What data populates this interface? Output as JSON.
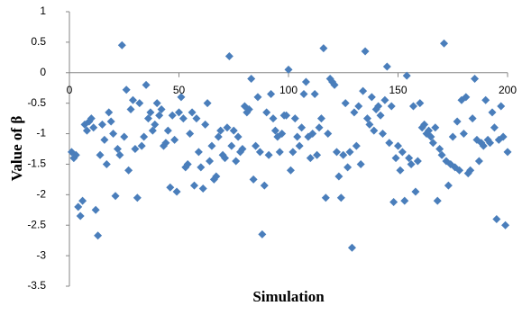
{
  "chart_data": {
    "type": "scatter",
    "x_label": "Simulation",
    "y_label": "Value of β",
    "xlim": [
      0,
      200
    ],
    "ylim": [
      -3.5,
      1
    ],
    "xticks": [
      0,
      50,
      100,
      150,
      200
    ],
    "yticks": [
      1,
      0.5,
      0,
      -0.5,
      -1,
      -1.5,
      -2,
      -2.5,
      -3,
      -3.5
    ],
    "grid": false,
    "series": [
      {
        "color": "#4a7ebb",
        "x": [
          1,
          2,
          3,
          4,
          5,
          6,
          7,
          8,
          9,
          10,
          11,
          12,
          13,
          14,
          15,
          16,
          17,
          18,
          19,
          20,
          21,
          22,
          23,
          24,
          25,
          26,
          27,
          28,
          29,
          30,
          31,
          32,
          33,
          34,
          35,
          36,
          37,
          38,
          39,
          40,
          41,
          42,
          43,
          44,
          45,
          46,
          47,
          48,
          49,
          50,
          51,
          52,
          53,
          54,
          55,
          56,
          57,
          58,
          59,
          60,
          61,
          62,
          63,
          64,
          65,
          66,
          67,
          68,
          69,
          70,
          71,
          72,
          73,
          74,
          75,
          76,
          77,
          78,
          79,
          80,
          81,
          82,
          83,
          84,
          85,
          86,
          87,
          88,
          89,
          90,
          91,
          92,
          93,
          94,
          95,
          96,
          97,
          98,
          99,
          100,
          101,
          102,
          103,
          104,
          105,
          106,
          107,
          108,
          109,
          110,
          111,
          112,
          113,
          114,
          115,
          116,
          117,
          118,
          119,
          120,
          121,
          122,
          123,
          124,
          125,
          126,
          127,
          128,
          129,
          130,
          131,
          132,
          133,
          134,
          135,
          136,
          137,
          138,
          139,
          140,
          141,
          142,
          143,
          144,
          145,
          146,
          147,
          148,
          149,
          150,
          151,
          152,
          153,
          154,
          155,
          156,
          157,
          158,
          159,
          160,
          161,
          162,
          163,
          164,
          165,
          166,
          167,
          168,
          169,
          170,
          171,
          172,
          173,
          174,
          175,
          176,
          177,
          178,
          179,
          180,
          181,
          182,
          183,
          184,
          185,
          186,
          187,
          188,
          189,
          190,
          191,
          192,
          193,
          194,
          195,
          196,
          197,
          198,
          199,
          200
        ],
        "values": [
          -1.3,
          -1.4,
          -1.35,
          -2.2,
          -2.35,
          -2.1,
          -0.85,
          -0.95,
          -0.8,
          -0.75,
          -0.9,
          -2.25,
          -2.67,
          -1.35,
          -0.85,
          -1.1,
          -1.5,
          -0.65,
          -0.8,
          -1.0,
          -2.02,
          -1.25,
          -1.35,
          0.45,
          -1.05,
          -0.28,
          -1.6,
          -0.6,
          -0.45,
          -1.25,
          -2.05,
          -0.5,
          -1.2,
          -1.05,
          -0.2,
          -0.75,
          -0.65,
          -0.95,
          -0.85,
          -0.5,
          -0.7,
          -0.6,
          -1.2,
          -1.15,
          -0.95,
          -1.88,
          -0.7,
          -1.1,
          -1.95,
          -0.65,
          -0.4,
          -0.75,
          -1.55,
          -1.5,
          -1.0,
          -0.65,
          -1.85,
          -0.75,
          -1.3,
          -1.55,
          -1.9,
          -0.85,
          -0.5,
          -1.45,
          -1.2,
          -1.75,
          -1.7,
          -1.05,
          -0.95,
          -1.35,
          -1.4,
          -0.9,
          0.27,
          -1.2,
          -0.95,
          -1.45,
          -1.05,
          -1.3,
          -1.25,
          -0.55,
          -0.65,
          -0.6,
          -0.1,
          -1.75,
          -1.2,
          -0.4,
          -1.3,
          -2.65,
          -1.85,
          -0.65,
          -1.35,
          -0.35,
          -0.75,
          -0.95,
          -1.05,
          -1.3,
          -1.0,
          -0.7,
          -0.7,
          0.05,
          -1.6,
          -1.3,
          -0.75,
          -1.05,
          -1.2,
          -0.9,
          -0.35,
          -0.15,
          -1.05,
          -1.4,
          -1.0,
          -0.35,
          -1.35,
          -0.9,
          -0.75,
          0.4,
          -2.05,
          -1.0,
          -0.1,
          -0.15,
          -0.2,
          -1.3,
          -1.7,
          -2.05,
          -1.35,
          -0.5,
          -1.55,
          -1.3,
          -2.87,
          -0.65,
          -1.2,
          -0.55,
          -1.5,
          -0.3,
          0.35,
          -0.75,
          -0.85,
          -0.4,
          -0.95,
          -0.6,
          -0.55,
          -0.7,
          -1.0,
          -0.45,
          0.1,
          -1.15,
          -0.55,
          -2.12,
          -1.4,
          -1.2,
          -1.6,
          -1.3,
          -2.1,
          -0.05,
          -1.4,
          -1.5,
          -0.55,
          -1.95,
          -1.45,
          -0.5,
          -0.9,
          -0.85,
          -1.0,
          -0.95,
          -1.05,
          -1.15,
          -0.9,
          -2.1,
          -1.25,
          -1.35,
          0.48,
          -1.45,
          -1.85,
          -1.5,
          -1.05,
          -1.55,
          -0.8,
          -1.6,
          -0.45,
          -1.0,
          -0.4,
          -1.65,
          -1.6,
          -0.75,
          -0.1,
          -1.1,
          -1.45,
          -1.15,
          -1.2,
          -0.45,
          -1.1,
          -1.15,
          -0.65,
          -0.9,
          -2.4,
          -1.1,
          -0.55,
          -1.05,
          -2.5,
          -1.3
        ]
      }
    ]
  }
}
